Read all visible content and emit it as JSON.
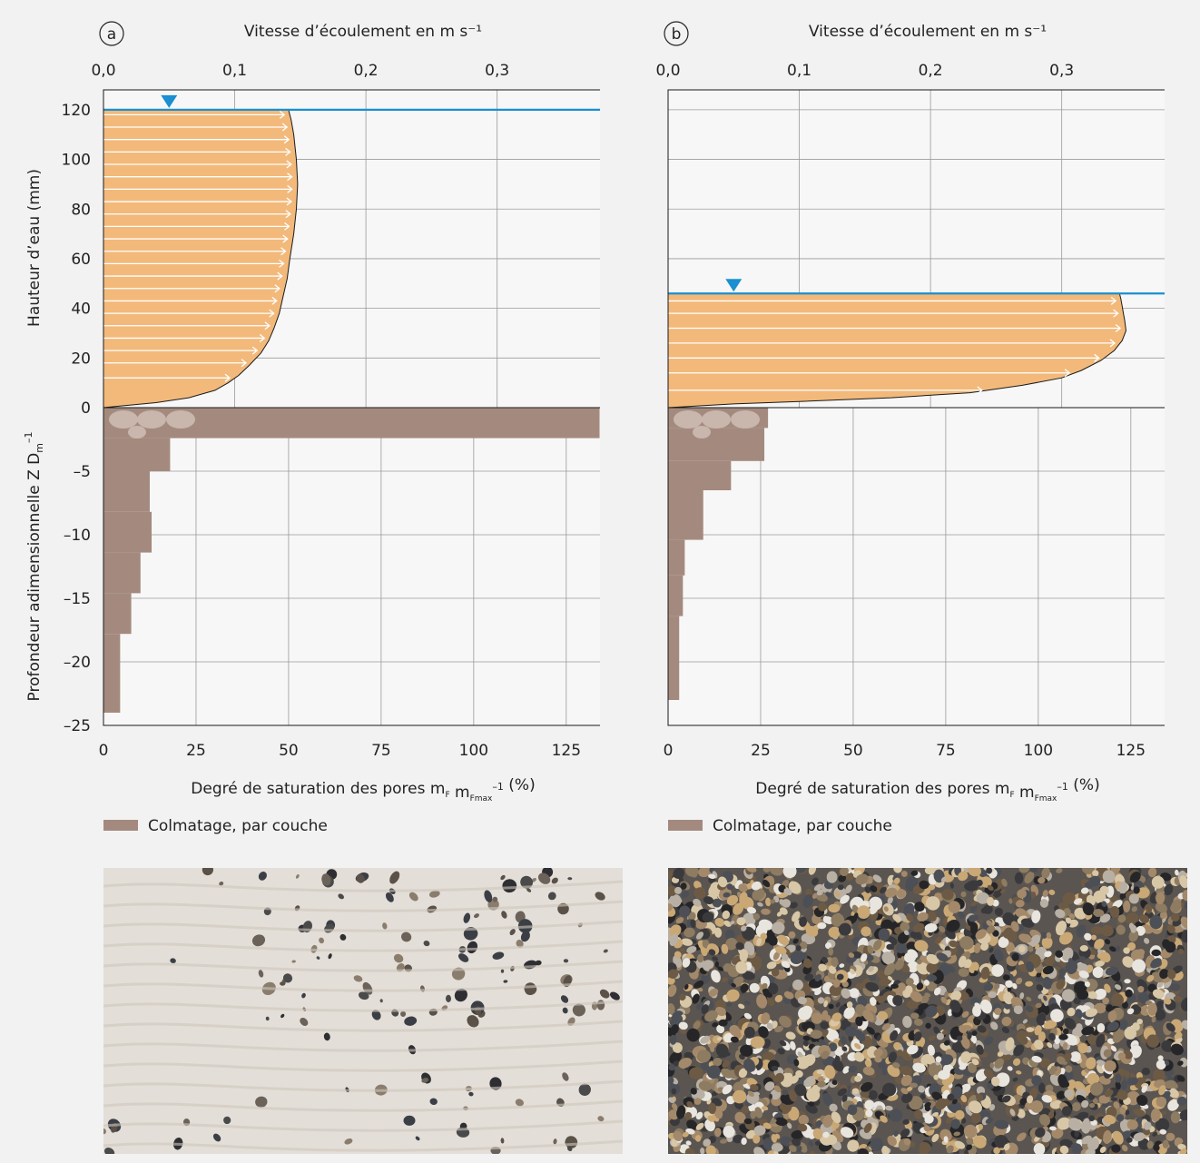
{
  "colors": {
    "velocity_fill": "#f2b97a",
    "clogging_fill": "#a48a7e",
    "water_line": "#1a8fd1",
    "grid": "#9a9a9a",
    "background": "#f2f2f2"
  },
  "chart_data": [
    {
      "type": "area",
      "panel_label": "a",
      "top_axis_label": "Vitesse d’écoulement en m s⁻¹",
      "top_ticks": [
        "0,0",
        "0,1",
        "0,2",
        "0,3"
      ],
      "top_xlim": [
        0,
        0.395
      ],
      "ylabel_upper": "Hauteur d’eau (mm)",
      "y_upper_ticks": [
        "120",
        "100",
        "80",
        "60",
        "40",
        "20",
        "0"
      ],
      "y_upper_lim": [
        0,
        128
      ],
      "water_level_mm": 120,
      "velocity_profile": {
        "height_mm": [
          0,
          2,
          4,
          7,
          10,
          13,
          17,
          22,
          27,
          32,
          38,
          45,
          52,
          60,
          70,
          80,
          90,
          100,
          110,
          116,
          120
        ],
        "velocity": [
          0.0,
          0.04,
          0.065,
          0.085,
          0.095,
          0.103,
          0.111,
          0.12,
          0.126,
          0.13,
          0.134,
          0.137,
          0.14,
          0.142,
          0.145,
          0.147,
          0.148,
          0.147,
          0.145,
          0.143,
          0.141
        ]
      },
      "velocity_arrows_mm": [
        12,
        18,
        23,
        28,
        33,
        38,
        43,
        48,
        53,
        58,
        63,
        68,
        73,
        78,
        83,
        88,
        93,
        98,
        103,
        108,
        113,
        118
      ],
      "ylabel_lower": "Profondeur adimensionnelle Z D",
      "ylabel_lower_sub": "m",
      "ylabel_lower_sup": "–1",
      "y_lower_ticks": [
        "0",
        "–5",
        "–10",
        "–15",
        "–20",
        "–25"
      ],
      "y_lower_lim": [
        -25,
        0
      ],
      "bottom_axis_label_main": "Degré de saturation des pores m",
      "bottom_axis_label_sub1": "F",
      "bottom_axis_label_mid": " m",
      "bottom_axis_label_sub2": "Fmax",
      "bottom_axis_label_sup": "–1",
      "bottom_axis_label_end": " (%)",
      "bottom_ticks": [
        "0",
        "25",
        "50",
        "75",
        "100",
        "125"
      ],
      "bottom_xlim": [
        0,
        140
      ],
      "clogging_layers": [
        {
          "depth_top": 0,
          "depth_bottom": -2.4,
          "saturation": 134
        },
        {
          "depth_top": -2.4,
          "depth_bottom": -5,
          "saturation": 18
        },
        {
          "depth_top": -5,
          "depth_bottom": -8.2,
          "saturation": 12.5
        },
        {
          "depth_top": -8.2,
          "depth_bottom": -11.4,
          "saturation": 13
        },
        {
          "depth_top": -11.4,
          "depth_bottom": -14.6,
          "saturation": 10
        },
        {
          "depth_top": -14.6,
          "depth_bottom": -17.8,
          "saturation": 7.5
        },
        {
          "depth_top": -17.8,
          "depth_bottom": -21,
          "saturation": 4.5
        },
        {
          "depth_top": -21,
          "depth_bottom": -24,
          "saturation": 4.5
        }
      ],
      "legend": "Colmatage, par couche",
      "grid": true
    },
    {
      "type": "area",
      "panel_label": "b",
      "top_axis_label": "Vitesse d’écoulement en m s⁻¹",
      "top_ticks": [
        "0,0",
        "0,1",
        "0,2",
        "0,3"
      ],
      "top_xlim": [
        0,
        0.395
      ],
      "y_upper_lim": [
        0,
        128
      ],
      "water_level_mm": 46,
      "velocity_profile": {
        "height_mm": [
          0,
          1.5,
          2.5,
          4,
          6,
          9,
          12,
          15,
          19,
          23,
          27,
          31,
          35,
          38,
          41,
          44,
          46
        ],
        "velocity": [
          0.0,
          0.05,
          0.1,
          0.17,
          0.23,
          0.27,
          0.3,
          0.315,
          0.33,
          0.34,
          0.346,
          0.349,
          0.348,
          0.347,
          0.346,
          0.345,
          0.344
        ]
      },
      "velocity_arrows_mm": [
        7,
        14,
        20,
        26,
        32,
        38,
        43
      ],
      "y_lower_lim": [
        -25,
        0
      ],
      "bottom_ticks": [
        "0",
        "25",
        "50",
        "75",
        "100",
        "125"
      ],
      "bottom_xlim": [
        0,
        140
      ],
      "bottom_axis_label_main": "Degré de saturation des pores m",
      "bottom_axis_label_sub1": "F",
      "bottom_axis_label_mid": " m",
      "bottom_axis_label_sub2": "Fmax",
      "bottom_axis_label_sup": "–1",
      "bottom_axis_label_end": " (%)",
      "clogging_layers": [
        {
          "depth_top": 0,
          "depth_bottom": -1.6,
          "saturation": 27
        },
        {
          "depth_top": -1.6,
          "depth_bottom": -4.2,
          "saturation": 26
        },
        {
          "depth_top": -4.2,
          "depth_bottom": -6.5,
          "saturation": 17
        },
        {
          "depth_top": -6.5,
          "depth_bottom": -10.4,
          "saturation": 9.5
        },
        {
          "depth_top": -10.4,
          "depth_bottom": -13.2,
          "saturation": 4.5
        },
        {
          "depth_top": -13.2,
          "depth_bottom": -16.4,
          "saturation": 4
        },
        {
          "depth_top": -16.4,
          "depth_bottom": -23,
          "saturation": 3
        }
      ],
      "legend": "Colmatage, par couche",
      "grid": true
    }
  ]
}
